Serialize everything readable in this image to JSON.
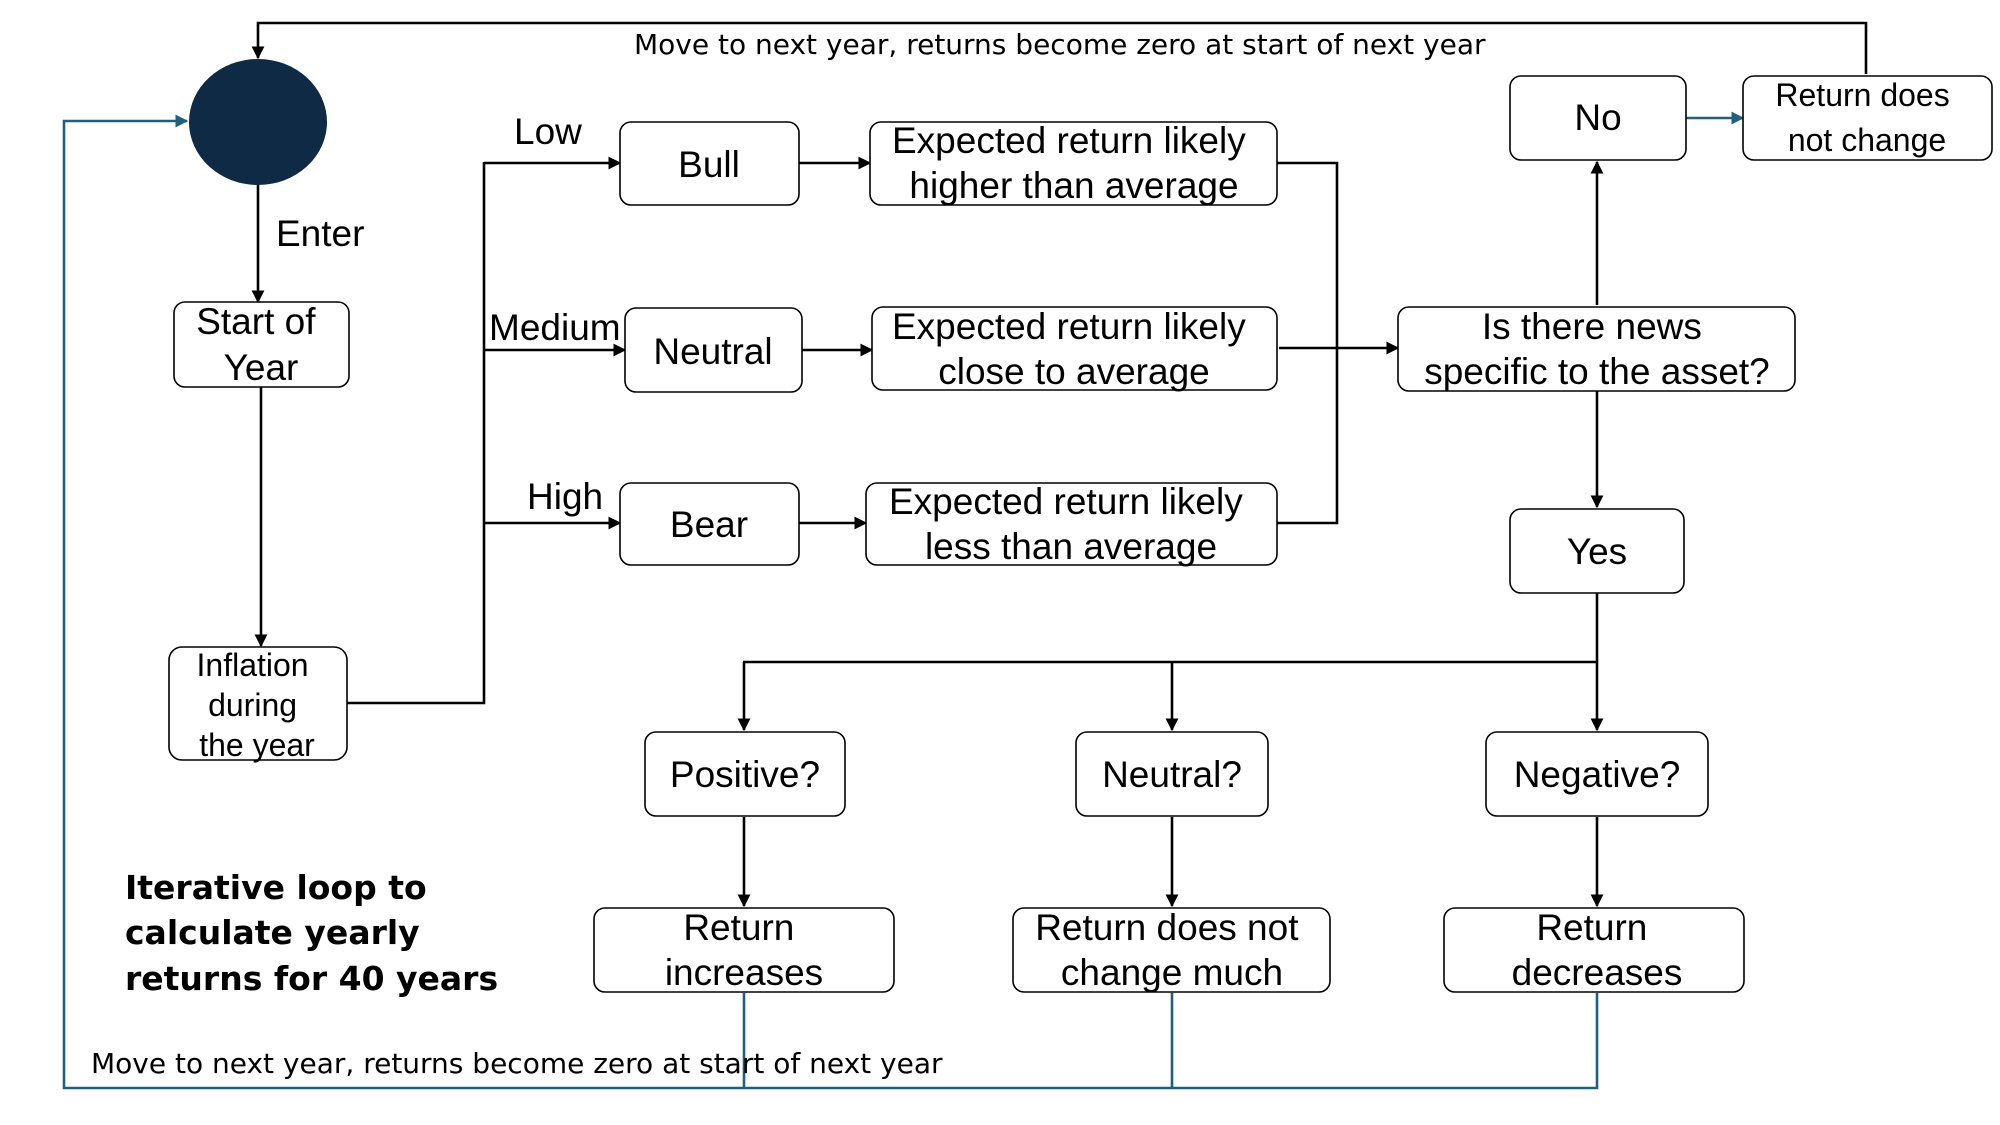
{
  "colors": {
    "start_node": "#0f2a44",
    "loop_line": "#20607f",
    "line": "#000000"
  },
  "nodes": {
    "start_year": [
      "Start of",
      "Year"
    ],
    "inflation": [
      "Inflation",
      "during",
      "the year"
    ],
    "bull": "Bull",
    "neutral_market": "Neutral",
    "bear": "Bear",
    "exp_higher": [
      "Expected return likely",
      "higher than average"
    ],
    "exp_close": [
      "Expected return likely",
      "close to average"
    ],
    "exp_less": [
      "Expected return likely",
      "less than average"
    ],
    "news_question": [
      "Is there news",
      "specific to the asset?"
    ],
    "no": "No",
    "yes": "Yes",
    "return_no_change": [
      "Return does",
      "not change"
    ],
    "positive": "Positive?",
    "neutral_q": "Neutral?",
    "negative": "Negative?",
    "return_increases": [
      "Return",
      "increases"
    ],
    "return_not_much": [
      "Return does not",
      "change much"
    ],
    "return_decreases": [
      "Return",
      "decreases"
    ]
  },
  "labels": {
    "enter": "Enter",
    "low": "Low",
    "medium": "Medium",
    "high": "High",
    "top_loop": "Move to next year, returns become zero at start of next year",
    "bottom_loop": "Move to next year, returns become zero at start of next year",
    "note": [
      "Iterative loop to",
      "calculate yearly",
      "returns for 40 years"
    ]
  }
}
